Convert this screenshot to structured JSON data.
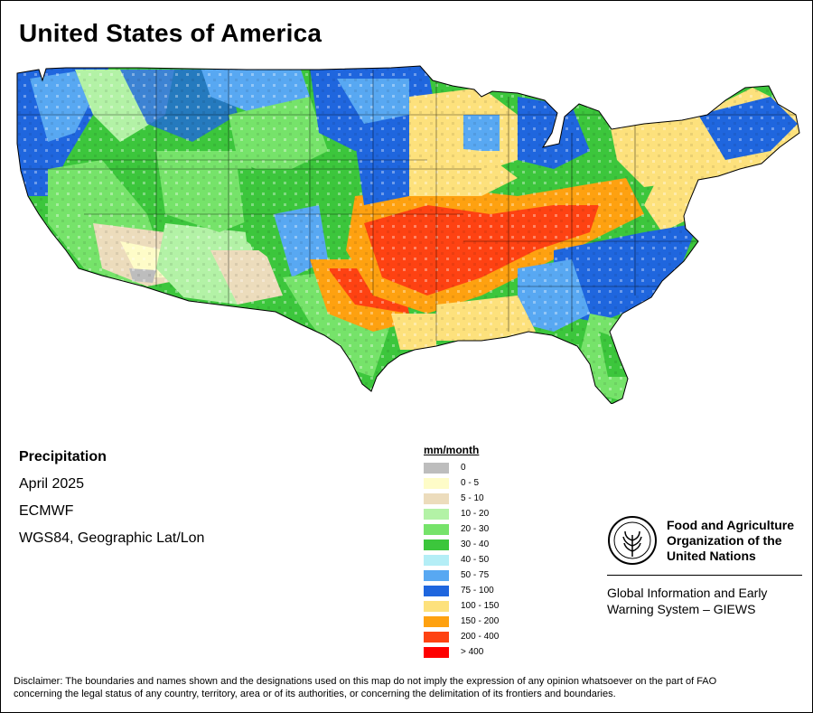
{
  "title": "United States of America",
  "info": {
    "variable": "Precipitation",
    "period": "April 2025",
    "source": "ECMWF",
    "projection": "WGS84, Geographic Lat/Lon"
  },
  "legend": {
    "unit": "mm/month",
    "items": [
      {
        "label": "0",
        "color": "#bdbdbd"
      },
      {
        "label": "0 - 5",
        "color": "#fefcc8"
      },
      {
        "label": "5 - 10",
        "color": "#ecdcbc"
      },
      {
        "label": "10 - 20",
        "color": "#b3f2a6"
      },
      {
        "label": "20 - 30",
        "color": "#76e36a"
      },
      {
        "label": "30 - 40",
        "color": "#3cc63c"
      },
      {
        "label": "40 - 50",
        "color": "#b4eef6"
      },
      {
        "label": "50 - 75",
        "color": "#58a8f2"
      },
      {
        "label": "75 - 100",
        "color": "#1f66de"
      },
      {
        "label": "100 - 150",
        "color": "#fde17c"
      },
      {
        "label": "150 - 200",
        "color": "#fea110"
      },
      {
        "label": "200 - 400",
        "color": "#fe4212"
      },
      {
        "label": "> 400",
        "color": "#fe0000"
      }
    ]
  },
  "organization": {
    "name_line1": "Food and Agriculture",
    "name_line2": "Organization of the",
    "name_line3": "United Nations",
    "system_line1": "Global Information and Early",
    "system_line2": "Warning System – GIEWS",
    "logo_letters": "FAO",
    "motto": "FIAT PANIS"
  },
  "disclaimer_line1": "Disclaimer: The boundaries and names shown and the designations used on this map do not imply the expression of any opinion whatsoever on the part of FAO",
  "disclaimer_line2": "concerning the legal status of any country, territory, area or of its authorities, or concerning the delimitation of its frontiers and boundaries."
}
